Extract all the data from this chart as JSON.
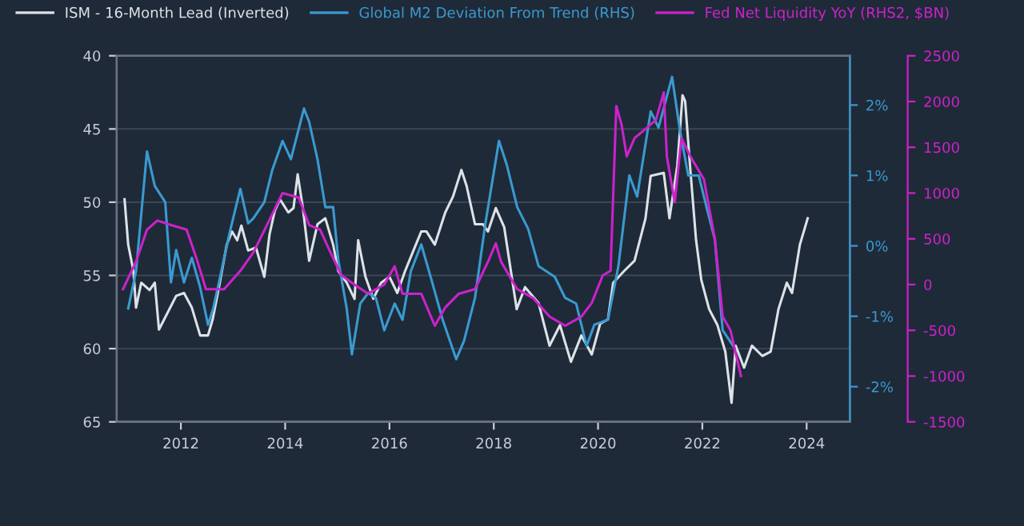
{
  "chart_data": {
    "type": "line",
    "legend": "top",
    "grid": "y",
    "xlim": [
      2010.77,
      2024.83
    ],
    "xticks": [
      2012,
      2014,
      2016,
      2018,
      2020,
      2022,
      2024
    ],
    "ylim": [
      65,
      40
    ],
    "yticks": [
      40,
      45,
      50,
      55,
      60,
      65
    ],
    "y2lim": [
      -2.5,
      2.7
    ],
    "y2ticks": [
      {
        "value": -2,
        "label": "-2%"
      },
      {
        "value": -1,
        "label": "-1%"
      },
      {
        "value": 0,
        "label": "0%"
      },
      {
        "value": 1,
        "label": "1%"
      },
      {
        "value": 2,
        "label": "2%"
      }
    ],
    "y3lim": [
      -1500,
      2500
    ],
    "y3ticks": [
      -1500,
      -1000,
      -500,
      0,
      500,
      1000,
      1500,
      2000,
      2500
    ],
    "series": [
      {
        "name": "ISM - 16-Month Lead (Inverted)",
        "color": "#dde2e8",
        "x": [
          2010.92,
          2010.99,
          2011.09,
          2011.14,
          2011.24,
          2011.4,
          2011.5,
          2011.58,
          2011.91,
          2012.06,
          2012.21,
          2012.37,
          2012.52,
          2012.61,
          2012.73,
          2012.88,
          2012.98,
          2013.08,
          2013.16,
          2013.29,
          2013.44,
          2013.6,
          2013.7,
          2013.8,
          2013.9,
          2014.06,
          2014.16,
          2014.24,
          2014.34,
          2014.46,
          2014.62,
          2014.77,
          2014.92,
          2015.02,
          2015.18,
          2015.33,
          2015.4,
          2015.54,
          2015.69,
          2015.84,
          2016.0,
          2016.15,
          2016.3,
          2016.46,
          2016.61,
          2016.71,
          2016.87,
          2017.07,
          2017.22,
          2017.38,
          2017.48,
          2017.64,
          2017.79,
          2017.89,
          2018.04,
          2018.2,
          2018.44,
          2018.6,
          2018.86,
          2019.07,
          2019.27,
          2019.48,
          2019.68,
          2019.88,
          2020.04,
          2020.19,
          2020.29,
          2020.5,
          2020.7,
          2020.91,
          2021.01,
          2021.26,
          2021.37,
          2021.52,
          2021.62,
          2021.67,
          2021.77,
          2021.88,
          2021.98,
          2022.13,
          2022.29,
          2022.44,
          2022.56,
          2022.64,
          2022.8,
          2022.95,
          2023.15,
          2023.31,
          2023.46,
          2023.62,
          2023.72,
          2023.87,
          2024.02
        ],
        "values": [
          49.8,
          52.9,
          54.7,
          57.2,
          55.5,
          56.0,
          55.5,
          58.7,
          56.4,
          56.2,
          57.2,
          59.1,
          59.1,
          58.0,
          55.8,
          52.9,
          52.0,
          52.6,
          51.6,
          53.3,
          53.1,
          55.1,
          52.2,
          50.6,
          49.8,
          50.7,
          50.4,
          48.1,
          50.4,
          54.0,
          51.5,
          51.1,
          52.9,
          54.7,
          55.5,
          56.6,
          52.6,
          55.1,
          56.6,
          55.5,
          55.1,
          56.2,
          54.7,
          53.3,
          52.0,
          52.0,
          52.9,
          50.7,
          49.6,
          47.8,
          48.9,
          51.5,
          51.5,
          52.0,
          50.4,
          51.7,
          57.3,
          55.8,
          56.9,
          59.8,
          58.4,
          60.9,
          59.1,
          60.4,
          58.3,
          58.0,
          55.5,
          54.7,
          54.0,
          51.1,
          48.2,
          48.0,
          51.1,
          47.5,
          42.7,
          43.1,
          47.8,
          52.6,
          55.3,
          57.3,
          58.4,
          60.2,
          63.7,
          59.8,
          61.3,
          59.8,
          60.5,
          60.2,
          57.3,
          55.5,
          56.2,
          52.9,
          51.1
        ]
      },
      {
        "name": "Global M2 Deviation From Trend (RHS)",
        "color": "#3a9ad0",
        "axis": "y2",
        "x": [
          2010.99,
          2011.14,
          2011.35,
          2011.5,
          2011.7,
          2011.81,
          2011.91,
          2012.06,
          2012.21,
          2012.37,
          2012.52,
          2012.62,
          2012.73,
          2012.93,
          2013.14,
          2013.29,
          2013.39,
          2013.6,
          2013.75,
          2013.95,
          2014.11,
          2014.36,
          2014.46,
          2014.62,
          2014.77,
          2014.92,
          2015.02,
          2015.18,
          2015.28,
          2015.44,
          2015.59,
          2015.74,
          2015.9,
          2016.1,
          2016.25,
          2016.41,
          2016.61,
          2016.82,
          2017.02,
          2017.28,
          2017.43,
          2017.64,
          2017.84,
          2018.1,
          2018.25,
          2018.45,
          2018.66,
          2018.86,
          2019.17,
          2019.37,
          2019.58,
          2019.78,
          2019.93,
          2020.19,
          2020.39,
          2020.6,
          2020.75,
          2021.01,
          2021.16,
          2021.42,
          2021.57,
          2021.73,
          2021.93,
          2022.08,
          2022.24,
          2022.39,
          2022.59
        ],
        "values": [
          -0.89,
          -0.36,
          1.34,
          0.85,
          0.62,
          -0.52,
          -0.06,
          -0.52,
          -0.17,
          -0.59,
          -1.12,
          -0.89,
          -0.52,
          0.17,
          0.81,
          0.32,
          0.39,
          0.62,
          1.07,
          1.49,
          1.23,
          1.95,
          1.76,
          1.23,
          0.55,
          0.55,
          -0.21,
          -0.89,
          -1.54,
          -0.82,
          -0.67,
          -0.74,
          -1.2,
          -0.82,
          -1.05,
          -0.36,
          0.02,
          -0.52,
          -1.05,
          -1.61,
          -1.35,
          -0.74,
          0.32,
          1.49,
          1.15,
          0.55,
          0.24,
          -0.29,
          -0.44,
          -0.74,
          -0.82,
          -1.42,
          -1.12,
          -1.05,
          -0.29,
          1.0,
          0.7,
          1.91,
          1.68,
          2.4,
          1.64,
          1.0,
          1.0,
          0.55,
          0.09,
          -1.2,
          -1.42
        ]
      },
      {
        "name": "Fed Net Liquidity YoY (RHS2, $BN)",
        "color": "#cc22cc",
        "axis": "y3",
        "x": [
          2010.89,
          2011.14,
          2011.35,
          2011.55,
          2011.81,
          2012.11,
          2012.32,
          2012.48,
          2012.83,
          2013.14,
          2013.39,
          2013.65,
          2013.95,
          2014.26,
          2014.46,
          2014.67,
          2014.87,
          2015.08,
          2015.33,
          2015.59,
          2015.9,
          2016.1,
          2016.25,
          2016.61,
          2016.87,
          2017.07,
          2017.33,
          2017.64,
          2017.89,
          2018.04,
          2018.14,
          2018.45,
          2018.76,
          2019.07,
          2019.37,
          2019.68,
          2019.88,
          2020.09,
          2020.24,
          2020.35,
          2020.45,
          2020.55,
          2020.7,
          2020.91,
          2021.11,
          2021.26,
          2021.32,
          2021.47,
          2021.6,
          2021.77,
          2022.03,
          2022.24,
          2022.39,
          2022.54,
          2022.74
        ],
        "values": [
          -50,
          250,
          600,
          700,
          650,
          600,
          250,
          -50,
          -50,
          150,
          350,
          650,
          1000,
          950,
          650,
          600,
          350,
          100,
          0,
          -100,
          0,
          200,
          -100,
          -100,
          -450,
          -250,
          -100,
          -50,
          250,
          450,
          250,
          -50,
          -150,
          -350,
          -450,
          -350,
          -200,
          100,
          150,
          1950,
          1750,
          1400,
          1600,
          1700,
          1800,
          2100,
          1400,
          900,
          1600,
          1400,
          1150,
          500,
          -350,
          -500,
          -1000
        ]
      }
    ]
  }
}
